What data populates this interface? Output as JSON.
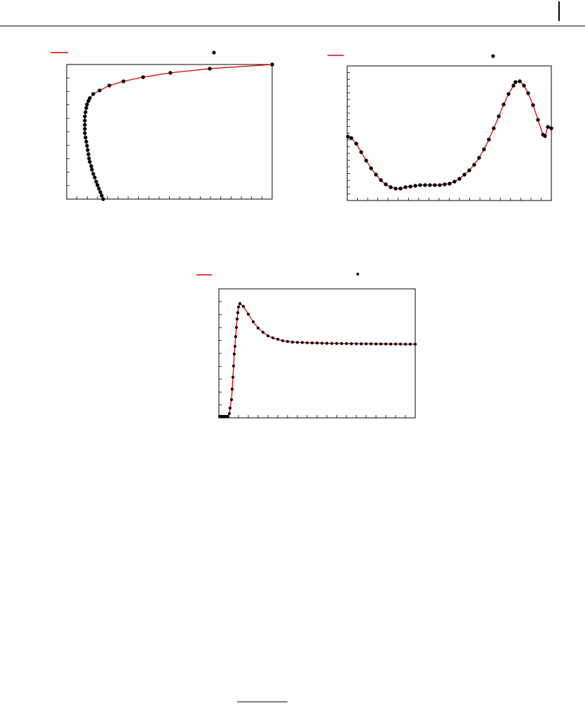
{
  "chart_data": [
    {
      "type": "line",
      "line_color": "#e00000",
      "marker_color": "#000000",
      "xlim": [
        0,
        20
      ],
      "ylim": [
        0,
        10
      ],
      "xticks": [
        0,
        1,
        2,
        3,
        4,
        5,
        6,
        7,
        8,
        9,
        10,
        11,
        12,
        13,
        14,
        15,
        16,
        17,
        18,
        19,
        20
      ],
      "yticks": [
        0,
        1,
        2,
        3,
        4,
        5,
        6,
        7,
        8,
        9,
        10
      ],
      "x": [
        3.55,
        3.41,
        3.28,
        3.14,
        3.0,
        2.87,
        2.73,
        2.59,
        2.46,
        2.39,
        2.25,
        2.18,
        2.12,
        2.05,
        1.98,
        1.91,
        1.84,
        1.77,
        1.77,
        1.77,
        1.77,
        1.77,
        1.84,
        1.91,
        1.98,
        2.12,
        2.25,
        2.59,
        3.21,
        4.16,
        5.53,
        7.44,
        10.1,
        13.93,
        20
      ],
      "values": [
        0,
        0.26,
        0.52,
        0.78,
        1.04,
        1.3,
        1.61,
        1.88,
        2.19,
        2.45,
        2.76,
        3.02,
        3.33,
        3.65,
        3.96,
        4.27,
        4.58,
        4.9,
        5.21,
        5.52,
        5.83,
        6.15,
        6.46,
        6.77,
        7.03,
        7.29,
        7.5,
        7.81,
        8.07,
        8.44,
        8.75,
        9.06,
        9.38,
        9.69,
        10
      ]
    },
    {
      "type": "line",
      "line_color": "#e00000",
      "marker_color": "#000000",
      "xlim": [
        0,
        20
      ],
      "ylim": [
        0,
        20
      ],
      "xticks": [
        0,
        1,
        2,
        3,
        4,
        5,
        6,
        7,
        8,
        9,
        10,
        11,
        12,
        13,
        14,
        15,
        16,
        17,
        18,
        19,
        20
      ],
      "yticks": [
        0,
        1,
        2,
        3,
        4,
        5,
        6,
        7,
        8,
        9,
        10,
        11,
        12,
        13,
        14,
        15,
        16,
        17,
        18,
        19,
        20
      ],
      "x": [
        0.07,
        0.41,
        0.89,
        1.37,
        1.86,
        2.34,
        2.82,
        3.3,
        3.78,
        4.26,
        4.74,
        5.22,
        5.7,
        6.19,
        6.67,
        7.15,
        7.63,
        8.11,
        8.59,
        9.07,
        9.55,
        10.03,
        10.52,
        11.0,
        11.48,
        11.96,
        12.44,
        12.92,
        13.4,
        13.88,
        14.36,
        14.85,
        15.33,
        15.81,
        16.29,
        16.49,
        16.91,
        17.32,
        17.73,
        18.21,
        18.69,
        19.18,
        19.38,
        19.66,
        20
      ],
      "values": [
        9.48,
        9.27,
        8.44,
        7.19,
        5.94,
        4.79,
        3.85,
        3.02,
        2.4,
        1.98,
        1.77,
        1.77,
        1.98,
        2.08,
        2.19,
        2.29,
        2.29,
        2.29,
        2.29,
        2.29,
        2.4,
        2.5,
        2.81,
        3.23,
        3.85,
        4.48,
        5.31,
        6.35,
        7.6,
        9.06,
        10.73,
        12.5,
        14.27,
        15.83,
        17.08,
        17.6,
        17.71,
        17.08,
        15.94,
        14.17,
        11.98,
        9.79,
        9.58,
        10.94,
        10.73
      ]
    },
    {
      "type": "line",
      "line_color": "#e00000",
      "marker_color": "#000000",
      "xlim": [
        0,
        20
      ],
      "ylim": [
        0,
        10
      ],
      "xticks": [
        0,
        1,
        2,
        3,
        4,
        5,
        6,
        7,
        8,
        9,
        10,
        11,
        12,
        13,
        14,
        15,
        16,
        17,
        18,
        19,
        20
      ],
      "yticks": [
        0,
        1,
        2,
        3,
        4,
        5,
        6,
        7,
        8,
        9,
        10
      ],
      "x": [
        0.07,
        0.21,
        0.36,
        0.5,
        0.64,
        0.79,
        0.93,
        1.07,
        1.14,
        1.29,
        1.36,
        1.43,
        1.5,
        1.57,
        1.64,
        1.71,
        1.79,
        1.86,
        1.93,
        2.0,
        2.14,
        2.5,
        3.0,
        3.5,
        4.0,
        4.5,
        5,
        5.5,
        6,
        6.5,
        7,
        7.5,
        8,
        8.5,
        9,
        9.5,
        10,
        10.5,
        11,
        11.5,
        12,
        12.5,
        13,
        13.5,
        14,
        14.5,
        15,
        15.5,
        16,
        16.5,
        17,
        17.5,
        18,
        18.5,
        19,
        19.5,
        20
      ],
      "values": [
        0.11,
        0.11,
        0.11,
        0.11,
        0.11,
        0.11,
        0.11,
        0.33,
        0.76,
        1.41,
        2.23,
        3.15,
        4.02,
        4.95,
        5.54,
        6.3,
        7.01,
        7.66,
        8.15,
        8.59,
        8.86,
        8.64,
        8.04,
        7.45,
        6.96,
        6.63,
        6.36,
        6.2,
        6.09,
        5.98,
        5.92,
        5.87,
        5.85,
        5.84,
        5.82,
        5.81,
        5.8,
        5.79,
        5.78,
        5.77,
        5.77,
        5.76,
        5.76,
        5.75,
        5.75,
        5.74,
        5.74,
        5.74,
        5.73,
        5.73,
        5.73,
        5.72,
        5.72,
        5.72,
        5.71,
        5.71,
        5.71
      ]
    }
  ]
}
